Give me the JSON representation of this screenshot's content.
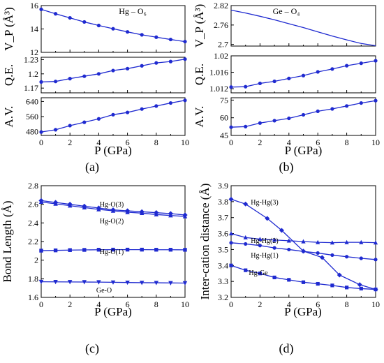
{
  "chart_data": [
    {
      "panel": "a",
      "type": "line",
      "caption": "(a)",
      "series_label": "Hg – O₆",
      "xlabel": "P (GPa)",
      "xlim": [
        0,
        10
      ],
      "xticks": [
        0,
        2,
        4,
        6,
        8,
        10
      ],
      "x": [
        0,
        1,
        2,
        3,
        4,
        5,
        6,
        7,
        8,
        9,
        10
      ],
      "subplots": [
        {
          "ylabel": "V_P (Å³)",
          "ylim": [
            12,
            16
          ],
          "yticks": [
            12,
            14,
            16
          ],
          "markers": true,
          "values": [
            15.68,
            15.3,
            14.95,
            14.6,
            14.3,
            14.02,
            13.75,
            13.5,
            13.3,
            13.1,
            12.92
          ]
        },
        {
          "ylabel": "Q.E.",
          "ylim": [
            1.16,
            1.235
          ],
          "yticks": [
            1.17,
            1.2,
            1.23
          ],
          "markers": true,
          "values": [
            1.183,
            1.184,
            1.19,
            1.195,
            1.2,
            1.207,
            1.211,
            1.217,
            1.223,
            1.226,
            1.231
          ]
        },
        {
          "ylabel": "A.V.",
          "ylim": [
            460,
            660
          ],
          "yticks": [
            480,
            560,
            640
          ],
          "markers": true,
          "values": [
            478,
            490,
            512,
            530,
            548,
            570,
            582,
            600,
            616,
            632,
            646
          ]
        }
      ]
    },
    {
      "panel": "b",
      "type": "line",
      "caption": "(b)",
      "series_label": "Ge – O₄",
      "xlabel": "P (GPa)",
      "xlim": [
        0,
        10
      ],
      "xticks": [
        0,
        2,
        4,
        6,
        8,
        10
      ],
      "x": [
        0,
        1,
        2,
        3,
        4,
        5,
        6,
        7,
        8,
        9,
        10
      ],
      "subplots": [
        {
          "ylabel": "V_P (Å³)",
          "ylim": [
            2.695,
            2.82
          ],
          "yticks": [
            2.7,
            2.76,
            2.82
          ],
          "markers": false,
          "values": [
            2.806,
            2.797,
            2.787,
            2.776,
            2.764,
            2.752,
            2.739,
            2.726,
            2.714,
            2.703,
            2.696
          ]
        },
        {
          "ylabel": "Q.E.",
          "ylim": [
            1.011,
            1.02
          ],
          "yticks": [
            1.012,
            1.016,
            1.02
          ],
          "markers": true,
          "values": [
            1.0124,
            1.0125,
            1.0133,
            1.0138,
            1.0145,
            1.0152,
            1.0161,
            1.0168,
            1.0176,
            1.0182,
            1.0188
          ]
        },
        {
          "ylabel": "A.V.",
          "ylim": [
            45,
            77
          ],
          "yticks": [
            45,
            60,
            75
          ],
          "markers": true,
          "values": [
            52,
            52.5,
            55.5,
            57.5,
            59.5,
            62.5,
            65.5,
            67.5,
            70,
            72.5,
            74.5
          ]
        }
      ]
    },
    {
      "panel": "c",
      "type": "line",
      "caption": "(c)",
      "xlabel": "P (GPa)",
      "ylabel": "Bond Length (Å)",
      "xlim": [
        0,
        10
      ],
      "ylim": [
        1.6,
        2.8
      ],
      "xticks": [
        0,
        2,
        4,
        6,
        8,
        10
      ],
      "yticks": [
        1.6,
        1.8,
        2.0,
        2.2,
        2.4,
        2.6,
        2.8
      ],
      "x": [
        0,
        1,
        2,
        3,
        4,
        5,
        6,
        7,
        8,
        9,
        10
      ],
      "series": [
        {
          "name": "Hg-O(3)",
          "marker": "diamond",
          "values": [
            2.64,
            2.62,
            2.6,
            2.58,
            2.56,
            2.54,
            2.53,
            2.52,
            2.51,
            2.5,
            2.485
          ]
        },
        {
          "name": "Hg-O(2)",
          "marker": "triangle-up",
          "values": [
            2.625,
            2.605,
            2.585,
            2.565,
            2.545,
            2.53,
            2.515,
            2.505,
            2.49,
            2.48,
            2.47
          ]
        },
        {
          "name": "Hg-O(1)",
          "marker": "square",
          "values": [
            2.102,
            2.105,
            2.108,
            2.11,
            2.112,
            2.113,
            2.113,
            2.113,
            2.112,
            2.112,
            2.111
          ]
        },
        {
          "name": "Ge-O",
          "marker": "triangle-down",
          "values": [
            1.768,
            1.767,
            1.766,
            1.765,
            1.764,
            1.762,
            1.76,
            1.758,
            1.757,
            1.755,
            1.754
          ]
        }
      ]
    },
    {
      "panel": "d",
      "type": "line",
      "caption": "(d)",
      "xlabel": "P (GPa)",
      "ylabel": "Inter-cation distance (Å)",
      "xlim": [
        0,
        10
      ],
      "ylim": [
        3.2,
        3.9
      ],
      "xticks": [
        0,
        2,
        4,
        6,
        8,
        10
      ],
      "yticks": [
        3.2,
        3.3,
        3.4,
        3.5,
        3.6,
        3.7,
        3.8,
        3.9
      ],
      "series": [
        {
          "name": "Hg-Hg(3)",
          "marker": "diamond",
          "x": [
            0,
            1,
            2.5,
            3.5,
            5,
            6.3,
            7.5,
            8.9,
            10
          ],
          "values": [
            3.815,
            3.785,
            3.695,
            3.62,
            3.49,
            3.45,
            3.34,
            3.28,
            3.25
          ]
        },
        {
          "name": "Hg-Hg(2)",
          "marker": "triangle-up",
          "x": [
            0,
            1,
            2,
            3,
            4,
            5,
            6,
            7,
            8,
            9,
            10
          ],
          "values": [
            3.6,
            3.575,
            3.565,
            3.56,
            3.555,
            3.55,
            3.545,
            3.543,
            3.545,
            3.545,
            3.543
          ]
        },
        {
          "name": "Hg-Hg(1)",
          "marker": "circle",
          "x": [
            0,
            1,
            2,
            3,
            4,
            5,
            6,
            7,
            8,
            9,
            10
          ],
          "values": [
            3.542,
            3.535,
            3.525,
            3.51,
            3.5,
            3.488,
            3.478,
            3.465,
            3.455,
            3.445,
            3.437
          ]
        },
        {
          "name": "Hg-Ge",
          "marker": "square",
          "x": [
            0,
            1,
            2,
            3,
            4,
            5,
            6,
            7,
            8,
            9,
            10
          ],
          "values": [
            3.4,
            3.37,
            3.35,
            3.325,
            3.31,
            3.295,
            3.285,
            3.275,
            3.262,
            3.255,
            3.25
          ]
        }
      ]
    }
  ]
}
